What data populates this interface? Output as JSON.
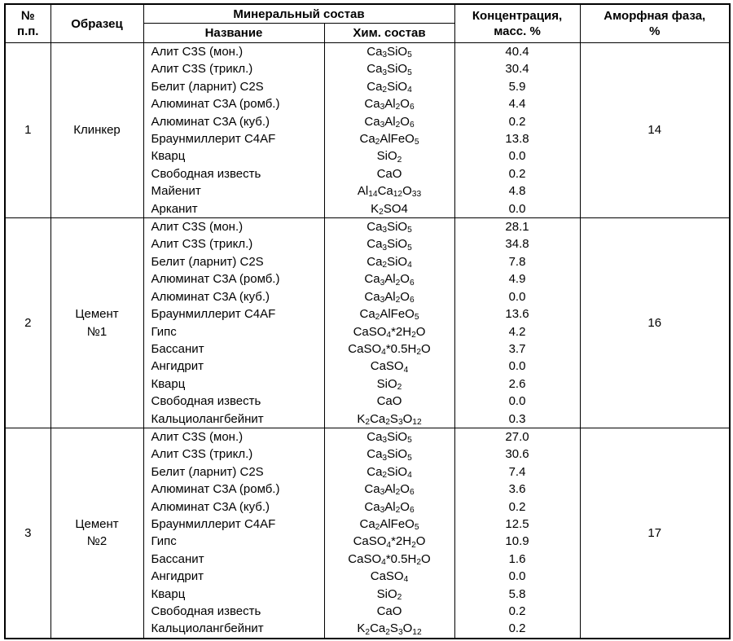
{
  "header": {
    "col_num": "№\nп.п.",
    "col_sample": "Образец",
    "col_mineral_group": "Минеральный состав",
    "col_name": "Название",
    "col_chem": "Хим. состав",
    "col_conc": "Концентрация,\nмасс. %",
    "col_amorph": "Аморфная фаза,\n%"
  },
  "colors": {
    "border": "#000000",
    "background": "#ffffff",
    "text": "#000000"
  },
  "blocks": [
    {
      "num": "1",
      "sample": "Клинкер",
      "amorphous": "14",
      "rows": [
        {
          "name": "Алит C3S (мон.)",
          "formula": "Ca_3SiO_5",
          "conc": "40.4"
        },
        {
          "name": "Алит C3S (трикл.)",
          "formula": "Ca_3SiO_5",
          "conc": "30.4"
        },
        {
          "name": "Белит (ларнит) C2S",
          "formula": "Ca_2SiO_4",
          "conc": "5.9"
        },
        {
          "name": "Алюминат C3A (ромб.)",
          "formula": "Ca_3Al_2O_6",
          "conc": "4.4"
        },
        {
          "name": "Алюминат C3A (куб.)",
          "formula": "Ca_3Al_2O_6",
          "conc": "0.2"
        },
        {
          "name": "Браунмиллерит C4AF",
          "formula": "Ca_2AlFeO_5",
          "conc": "13.8"
        },
        {
          "name": "Кварц",
          "formula": "SiO_2",
          "conc": "0.0"
        },
        {
          "name": "Свободная известь",
          "formula": "CaO",
          "conc": "0.2"
        },
        {
          "name": "Майенит",
          "formula": "Al_{14}Ca_{12}O_{33}",
          "conc": "4.8"
        },
        {
          "name": "Арканит",
          "formula": "K_2SO4",
          "conc": "0.0"
        }
      ]
    },
    {
      "num": "2",
      "sample": "Цемент\n№1",
      "amorphous": "16",
      "rows": [
        {
          "name": "Алит C3S (мон.)",
          "formula": "Ca_3SiO_5",
          "conc": "28.1"
        },
        {
          "name": "Алит C3S (трикл.)",
          "formula": "Ca_3SiO_5",
          "conc": "34.8"
        },
        {
          "name": "Белит (ларнит) C2S",
          "formula": "Ca_2SiO_4",
          "conc": "7.8"
        },
        {
          "name": "Алюминат C3A (ромб.)",
          "formula": "Ca_3Al_2O_6",
          "conc": "4.9"
        },
        {
          "name": "Алюминат C3A (куб.)",
          "formula": "Ca_3Al_2O_6",
          "conc": "0.0"
        },
        {
          "name": "Браунмиллерит C4AF",
          "formula": "Ca_2AlFeO_5",
          "conc": "13.6"
        },
        {
          "name": "Гипс",
          "formula": "CaSO_4*2H_2O",
          "conc": "4.2"
        },
        {
          "name": "Бассанит",
          "formula": "CaSO_4*0.5H_2O",
          "conc": "3.7"
        },
        {
          "name": "Ангидрит",
          "formula": "CaSO_4",
          "conc": "0.0"
        },
        {
          "name": "Кварц",
          "formula": "SiO_2",
          "conc": "2.6"
        },
        {
          "name": "Свободная известь",
          "formula": "CaO",
          "conc": "0.0"
        },
        {
          "name": "Кальциолангбейнит",
          "formula": "K_2Ca_2S_3O_{12}",
          "conc": "0.3"
        }
      ]
    },
    {
      "num": "3",
      "sample": "Цемент\n№2",
      "amorphous": "17",
      "rows": [
        {
          "name": "Алит C3S (мон.)",
          "formula": "Ca_3SiO_5",
          "conc": "27.0"
        },
        {
          "name": "Алит C3S (трикл.)",
          "formula": "Ca_3SiO_5",
          "conc": "30.6"
        },
        {
          "name": "Белит (ларнит) C2S",
          "formula": "Ca_2SiO_4",
          "conc": "7.4"
        },
        {
          "name": "Алюминат C3A (ромб.)",
          "formula": "Ca_3Al_2O_6",
          "conc": "3.6"
        },
        {
          "name": "Алюминат C3A (куб.)",
          "formula": "Ca_3Al_2O_6",
          "conc": "0.2"
        },
        {
          "name": "Браунмиллерит C4AF",
          "formula": "Ca_2AlFeO_5",
          "conc": "12.5"
        },
        {
          "name": "Гипс",
          "formula": "CaSO_4*2H_2O",
          "conc": "10.9"
        },
        {
          "name": "Бассанит",
          "formula": "CaSO_4*0.5H_2O",
          "conc": "1.6"
        },
        {
          "name": "Ангидрит",
          "formula": "CaSO_4",
          "conc": "0.0"
        },
        {
          "name": "Кварц",
          "formula": "SiO_2",
          "conc": "5.8"
        },
        {
          "name": "Свободная известь",
          "formula": "CaO",
          "conc": "0.2"
        },
        {
          "name": "Кальциолангбейнит",
          "formula": "K_2Ca_2S_3O_{12}",
          "conc": "0.2"
        }
      ]
    }
  ]
}
